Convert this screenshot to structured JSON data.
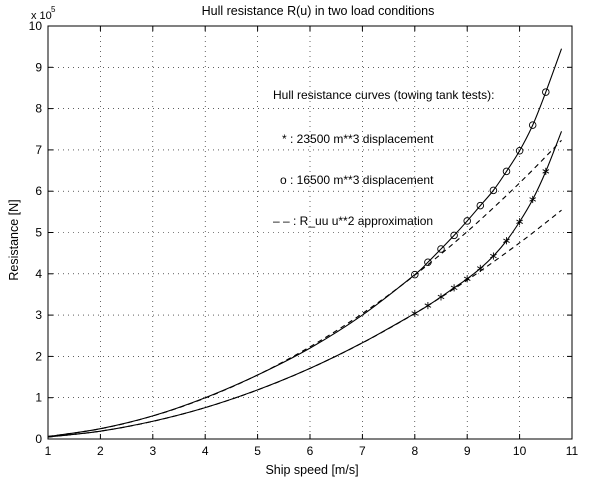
{
  "chart_data": {
    "type": "line",
    "title": "Hull resistance R(u) in two load conditions",
    "xlabel": "Ship speed  [m/s]",
    "ylabel": "Resistance  [N]",
    "exponent_base": "x 10",
    "exponent_power": "5",
    "xlim": [
      1,
      11
    ],
    "ylim": [
      0,
      10
    ],
    "xticks": [
      1,
      2,
      3,
      4,
      5,
      6,
      7,
      8,
      9,
      10,
      11
    ],
    "yticks": [
      0,
      1,
      2,
      3,
      4,
      5,
      6,
      7,
      8,
      9,
      10
    ],
    "grid": true,
    "annotations": [
      "Hull resistance curves (towing tank tests):",
      "*  :  23500 m**3 displacement",
      "o  :  16500 m**3 displacement",
      "– –  : R_uu u**2 approximation"
    ],
    "series": [
      {
        "label": "16500 m**3 displacement",
        "style": "solid",
        "x": [
          1,
          2,
          3,
          4,
          5,
          6,
          7,
          8,
          8.25,
          8.5,
          8.75,
          9,
          9.25,
          9.5,
          9.75,
          10,
          10.25,
          10.5,
          10.8
        ],
        "y": [
          0.06,
          0.25,
          0.56,
          1.0,
          1.55,
          2.2,
          3.0,
          3.98,
          4.28,
          4.6,
          4.93,
          5.28,
          5.65,
          6.02,
          6.48,
          6.98,
          7.6,
          8.4,
          9.45
        ]
      },
      {
        "label": "23500 m**3 displacement",
        "style": "solid",
        "x": [
          1,
          2,
          3,
          4,
          5,
          6,
          7,
          8,
          8.25,
          8.5,
          8.75,
          9,
          9.25,
          9.5,
          9.75,
          10,
          10.25,
          10.5,
          10.8
        ],
        "y": [
          0.05,
          0.19,
          0.43,
          0.76,
          1.19,
          1.71,
          2.33,
          3.04,
          3.23,
          3.44,
          3.66,
          3.88,
          4.13,
          4.43,
          4.8,
          5.26,
          5.8,
          6.48,
          7.45
        ]
      },
      {
        "label": "R_uu u**2 approximation (16500)",
        "style": "dashed",
        "x": [
          1,
          2,
          3,
          4,
          5,
          6,
          7,
          8,
          9,
          10,
          10.8
        ],
        "y": [
          0.062,
          0.248,
          0.558,
          0.992,
          1.55,
          2.232,
          3.038,
          3.968,
          5.022,
          6.2,
          7.232
        ]
      },
      {
        "label": "R_uu u**2 approximation (23500)",
        "style": "dashed",
        "x": [
          1,
          2,
          3,
          4,
          5,
          6,
          7,
          8,
          9,
          10,
          10.8
        ],
        "y": [
          0.0475,
          0.19,
          0.4275,
          0.76,
          1.1875,
          1.71,
          2.3275,
          3.04,
          3.8475,
          4.75,
          5.54
        ]
      }
    ],
    "markers": [
      {
        "label": "16500 m**3 displacement",
        "symbol": "o",
        "x": [
          8,
          8.25,
          8.5,
          8.75,
          9,
          9.25,
          9.5,
          9.75,
          10,
          10.25,
          10.5
        ],
        "y": [
          3.98,
          4.28,
          4.6,
          4.93,
          5.28,
          5.65,
          6.02,
          6.48,
          6.98,
          7.6,
          8.4
        ]
      },
      {
        "label": "23500 m**3 displacement",
        "symbol": "*",
        "x": [
          8,
          8.25,
          8.5,
          8.75,
          9,
          9.25,
          9.5,
          9.75,
          10,
          10.25,
          10.5
        ],
        "y": [
          3.04,
          3.23,
          3.44,
          3.66,
          3.88,
          4.13,
          4.43,
          4.8,
          5.26,
          5.8,
          6.48
        ]
      }
    ]
  }
}
